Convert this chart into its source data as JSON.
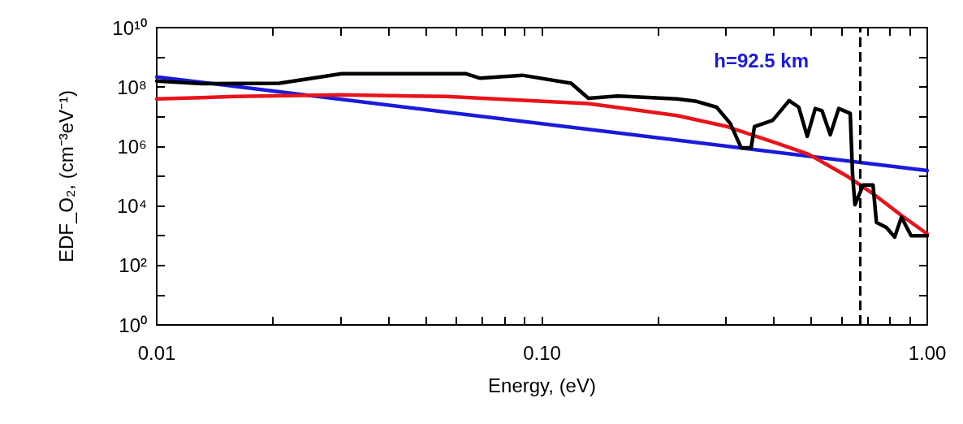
{
  "chart_data": {
    "type": "line",
    "xlabel": "Energy, (eV)",
    "ylabel": "EDF_O₂, (cm⁻³eV⁻¹)",
    "log": "xy",
    "xlim": [
      0.01,
      1
    ],
    "ylim": [
      1,
      10000000000
    ],
    "xticks": [
      {
        "value": 0.01,
        "label": "0.01"
      },
      {
        "value": 0.02,
        "label": null
      },
      {
        "value": 0.03,
        "label": null
      },
      {
        "value": 0.04,
        "label": null
      },
      {
        "value": 0.05,
        "label": null
      },
      {
        "value": 0.06,
        "label": null
      },
      {
        "value": 0.07,
        "label": null
      },
      {
        "value": 0.08,
        "label": null
      },
      {
        "value": 0.09,
        "label": null
      },
      {
        "value": 0.1,
        "label": "0.10"
      },
      {
        "value": 0.2,
        "label": null
      },
      {
        "value": 0.3,
        "label": null
      },
      {
        "value": 0.4,
        "label": null
      },
      {
        "value": 0.5,
        "label": null
      },
      {
        "value": 0.6,
        "label": null
      },
      {
        "value": 0.7,
        "label": null
      },
      {
        "value": 0.8,
        "label": null
      },
      {
        "value": 0.9,
        "label": null
      },
      {
        "value": 1,
        "label": "1.00"
      }
    ],
    "yticks": [
      {
        "value": 1,
        "label": "10⁰"
      },
      {
        "value": 10,
        "label": null
      },
      {
        "value": 100,
        "label": "10²"
      },
      {
        "value": 1000,
        "label": null
      },
      {
        "value": 10000,
        "label": "10⁴"
      },
      {
        "value": 100000,
        "label": null
      },
      {
        "value": 1000000,
        "label": "10⁶"
      },
      {
        "value": 10000000,
        "label": null
      },
      {
        "value": 100000000,
        "label": "10⁸"
      },
      {
        "value": 1000000000,
        "label": null
      },
      {
        "value": 10000000000,
        "label": "10¹⁰"
      }
    ],
    "grid": false,
    "marker": "none",
    "line_style": "solid",
    "series": [
      {
        "color": "#000000",
        "x": [
          0.01,
          0.0131,
          0.0208,
          0.0302,
          0.0636,
          0.0689,
          0.0889,
          0.119,
          0.132,
          0.157,
          0.224,
          0.252,
          0.284,
          0.308,
          0.329,
          0.349,
          0.356,
          0.397,
          0.438,
          0.464,
          0.488,
          0.512,
          0.533,
          0.56,
          0.589,
          0.631,
          0.64,
          0.649,
          0.682,
          0.723,
          0.738,
          0.783,
          0.823,
          0.857,
          0.908,
          1
        ],
        "values": [
          160000000,
          130000000,
          135000000,
          280000000,
          280000000,
          200000000,
          250000000,
          135000000,
          42000000,
          50000000,
          40000000,
          33000000,
          21000000,
          6000000,
          900000,
          900000,
          4700000,
          7600000,
          35000000,
          21000000,
          2200000,
          19000000,
          16000000,
          2500000,
          19000000,
          13000000,
          110000,
          11000,
          51000,
          51000,
          2800,
          1900,
          900,
          4200,
          1000,
          1000
        ]
      },
      {
        "color": "#e8141b",
        "x": [
          0.01,
          0.016,
          0.0302,
          0.0565,
          0.1316,
          0.224,
          0.302,
          0.406,
          0.492,
          0.624,
          0.729,
          0.857,
          1
        ],
        "values": [
          40000000,
          48000000,
          55000000,
          48000000,
          28000000,
          11000000,
          4700000,
          1300000,
          550000,
          95000,
          24000,
          4800,
          1150
        ]
      },
      {
        "color": "#1a1adb",
        "x": [
          0.01,
          1
        ],
        "values": [
          220000000,
          155000
        ]
      }
    ],
    "ref_lines": [
      {
        "axis": "x",
        "value": 0.67,
        "color": "#000000",
        "line_style": "dashed"
      }
    ],
    "annotations": [
      "h=92.5 km"
    ]
  }
}
